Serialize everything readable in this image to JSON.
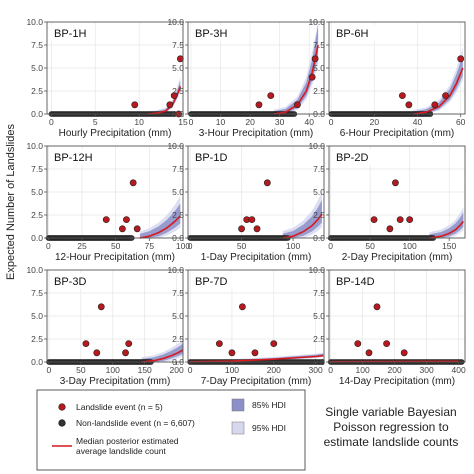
{
  "figure": {
    "ylabel": "Expected Number of Landslides",
    "caption_lines": [
      "Single variable Bayesian",
      "Poisson regression to",
      "estimate landslide counts"
    ]
  },
  "legend": {
    "landslide_label": "Landslide event (n = 5)",
    "nonlandslide_label": "Non-landslide event (n = 6,607)",
    "median_label_line1": "Median posterior estimated",
    "median_label_line2": "average landslide count",
    "hdi85_label": "85% HDI",
    "hdi95_label": "95% HDI"
  },
  "colors": {
    "landslide": "#b8191f",
    "nonlandslide": "#333333",
    "median": "#d7191c",
    "hdi85": "#8c8fc8",
    "hdi95": "#d6d8ee",
    "grid": "#e6e6e6",
    "frame": "#555555"
  },
  "chart_data": [
    {
      "type": "scatter",
      "title": "BP-1H",
      "xlabel": "Hourly Precipitation (mm)",
      "xlim": [
        -0.5,
        15
      ],
      "ylim": [
        0,
        10
      ],
      "xticks": [
        0,
        5,
        10,
        15
      ],
      "yticks": [
        0.0,
        2.5,
        5.0,
        7.5,
        10.0
      ],
      "nonlandslide_x_range": [
        0,
        14
      ],
      "landslides": [
        [
          9.5,
          1
        ],
        [
          13.5,
          1
        ],
        [
          14,
          2
        ],
        [
          14.7,
          6
        ],
        [
          14.5,
          0
        ]
      ],
      "median": [
        [
          11,
          0
        ],
        [
          12,
          0.1
        ],
        [
          13,
          0.3
        ],
        [
          13.8,
          1
        ],
        [
          14.3,
          2
        ],
        [
          14.7,
          3
        ]
      ],
      "hdi_width": 0.6
    },
    {
      "type": "scatter",
      "title": "BP-3H",
      "xlabel": "3-Hour Precipitation (mm)",
      "xlim": [
        -1,
        45
      ],
      "ylim": [
        0,
        10
      ],
      "xticks": [
        0,
        10,
        20,
        30,
        40
      ],
      "yticks": [
        0.0,
        2.5,
        5.0,
        7.5,
        10.0
      ],
      "nonlandslide_x_range": [
        0,
        35
      ],
      "landslides": [
        [
          23,
          1
        ],
        [
          27,
          2
        ],
        [
          36,
          1
        ],
        [
          41,
          4
        ],
        [
          42,
          6
        ]
      ],
      "median": [
        [
          28,
          0
        ],
        [
          32,
          0.2
        ],
        [
          36,
          1
        ],
        [
          39,
          2.5
        ],
        [
          41,
          4.5
        ],
        [
          43,
          7.5
        ]
      ],
      "hdi_width": 1.0
    },
    {
      "type": "scatter",
      "title": "BP-6H",
      "xlabel": "6-Hour Precipitation (mm)",
      "xlim": [
        -1,
        62
      ],
      "ylim": [
        0,
        10
      ],
      "xticks": [
        0,
        20,
        40,
        60
      ],
      "yticks": [
        0.0,
        2.5,
        5.0,
        7.5,
        10.0
      ],
      "nonlandslide_x_range": [
        0,
        46
      ],
      "landslides": [
        [
          33,
          2
        ],
        [
          36,
          1
        ],
        [
          48,
          1
        ],
        [
          53,
          2
        ],
        [
          60,
          6
        ]
      ],
      "median": [
        [
          38,
          0
        ],
        [
          44,
          0.2
        ],
        [
          50,
          0.8
        ],
        [
          55,
          2
        ],
        [
          58,
          3.3
        ],
        [
          61,
          5
        ]
      ],
      "hdi_width": 0.9
    },
    {
      "type": "scatter",
      "title": "BP-12H",
      "xlabel": "12-Hour Precipitation (mm)",
      "xlim": [
        -1,
        100
      ],
      "ylim": [
        0,
        10
      ],
      "xticks": [
        0,
        25,
        50,
        75,
        100
      ],
      "yticks": [
        0.0,
        2.5,
        5.0,
        7.5,
        10.0
      ],
      "nonlandslide_x_range": [
        0,
        62
      ],
      "landslides": [
        [
          43,
          2
        ],
        [
          55,
          1
        ],
        [
          58,
          2
        ],
        [
          63,
          6
        ],
        [
          66,
          1
        ]
      ],
      "median": [
        [
          68,
          0
        ],
        [
          75,
          0.2
        ],
        [
          82,
          0.6
        ],
        [
          88,
          1.1
        ],
        [
          94,
          1.8
        ],
        [
          98,
          2.4
        ]
      ],
      "hdi_width": 1.5
    },
    {
      "type": "scatter",
      "title": "BP-1D",
      "xlabel": "1-Day Precipitation (mm)",
      "xlim": [
        -2,
        130
      ],
      "ylim": [
        0,
        10
      ],
      "xticks": [
        0,
        50,
        100
      ],
      "yticks": [
        0.0,
        2.5,
        5.0,
        7.5,
        10.0
      ],
      "nonlandslide_x_range": [
        0,
        95
      ],
      "landslides": [
        [
          50,
          1
        ],
        [
          55,
          2
        ],
        [
          60,
          2
        ],
        [
          65,
          1
        ],
        [
          75,
          6
        ]
      ],
      "median": [
        [
          90,
          0
        ],
        [
          100,
          0.2
        ],
        [
          110,
          0.7
        ],
        [
          118,
          1.3
        ],
        [
          124,
          2
        ],
        [
          128,
          2.6
        ]
      ],
      "hdi_width": 1.6
    },
    {
      "type": "scatter",
      "title": "BP-2D",
      "xlabel": "2-Day Precipitation (mm)",
      "xlim": [
        -2,
        170
      ],
      "ylim": [
        0,
        10
      ],
      "xticks": [
        0,
        50,
        100,
        150
      ],
      "yticks": [
        0.0,
        2.5,
        5.0,
        7.5,
        10.0
      ],
      "nonlandslide_x_range": [
        0,
        130
      ],
      "landslides": [
        [
          55,
          2
        ],
        [
          75,
          1
        ],
        [
          82,
          6
        ],
        [
          88,
          2
        ],
        [
          100,
          2
        ]
      ],
      "median": [
        [
          125,
          0
        ],
        [
          140,
          0.2
        ],
        [
          150,
          0.5
        ],
        [
          158,
          0.9
        ],
        [
          163,
          1.3
        ],
        [
          168,
          1.8
        ]
      ],
      "hdi_width": 1.3
    },
    {
      "type": "scatter",
      "title": "BP-3D",
      "xlabel": "3-Day Precipitation (mm)",
      "xlim": [
        -3,
        210
      ],
      "ylim": [
        0,
        10
      ],
      "xticks": [
        0,
        50,
        100,
        150,
        200
      ],
      "yticks": [
        0.0,
        2.5,
        5.0,
        7.5,
        10.0
      ],
      "nonlandslide_x_range": [
        0,
        160
      ],
      "landslides": [
        [
          58,
          2
        ],
        [
          75,
          1
        ],
        [
          82,
          6
        ],
        [
          120,
          1
        ],
        [
          125,
          2
        ]
      ],
      "median": [
        [
          145,
          0
        ],
        [
          165,
          0.15
        ],
        [
          180,
          0.4
        ],
        [
          192,
          0.7
        ],
        [
          202,
          1.0
        ],
        [
          210,
          1.3
        ]
      ],
      "hdi_width": 1.1
    },
    {
      "type": "scatter",
      "title": "BP-7D",
      "xlabel": "7-Day Precipitation (mm)",
      "xlim": [
        -5,
        320
      ],
      "ylim": [
        0,
        10
      ],
      "xticks": [
        0,
        100,
        200,
        300
      ],
      "yticks": [
        0.0,
        2.5,
        5.0,
        7.5,
        10.0
      ],
      "nonlandslide_x_range": [
        0,
        315
      ],
      "landslides": [
        [
          70,
          2
        ],
        [
          100,
          1
        ],
        [
          125,
          6
        ],
        [
          155,
          1
        ],
        [
          200,
          2
        ]
      ],
      "median": [
        [
          0,
          0.02
        ],
        [
          100,
          0.1
        ],
        [
          200,
          0.3
        ],
        [
          300,
          0.6
        ],
        [
          318,
          0.7
        ]
      ],
      "hdi_width": 0.4
    },
    {
      "type": "scatter",
      "title": "BP-14D",
      "xlabel": "14-Day Precipitation (mm)",
      "xlim": [
        -5,
        420
      ],
      "ylim": [
        0,
        10
      ],
      "xticks": [
        0,
        100,
        200,
        300,
        400
      ],
      "yticks": [
        0.0,
        2.5,
        5.0,
        7.5,
        10.0
      ],
      "nonlandslide_x_range": [
        0,
        410
      ],
      "landslides": [
        [
          85,
          2
        ],
        [
          120,
          1
        ],
        [
          145,
          6
        ],
        [
          175,
          2
        ],
        [
          230,
          1
        ]
      ],
      "median": [
        [
          0,
          0.02
        ],
        [
          200,
          0.05
        ],
        [
          400,
          0.08
        ]
      ],
      "hdi_width": 0.1
    }
  ]
}
